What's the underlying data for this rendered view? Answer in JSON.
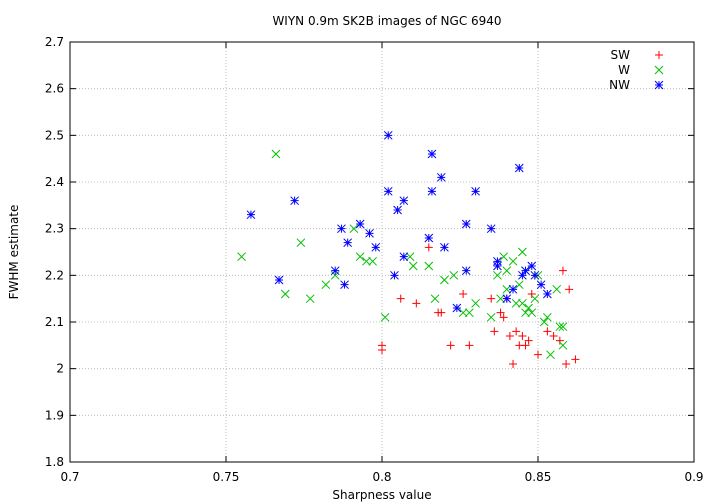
{
  "chart_data": {
    "type": "scatter",
    "title": "WIYN 0.9m SK2B images of NGC 6940",
    "xlabel": "Sharpness value",
    "ylabel": "FWHM estimate",
    "xlim": [
      0.7,
      0.9
    ],
    "ylim": [
      1.8,
      2.7
    ],
    "xticks": [
      "0.7",
      "0.75",
      "0.8",
      "0.85",
      "0.9"
    ],
    "yticks": [
      "1.8",
      "1.9",
      "2",
      "2.1",
      "2.2",
      "2.3",
      "2.4",
      "2.5",
      "2.6",
      "2.7"
    ],
    "grid": true,
    "legend_position": "top-right",
    "series": [
      {
        "name": "SW",
        "marker": "plus",
        "color": "#ff0000",
        "points": [
          [
            0.8,
            2.05
          ],
          [
            0.8,
            2.04
          ],
          [
            0.806,
            2.15
          ],
          [
            0.811,
            2.14
          ],
          [
            0.815,
            2.26
          ],
          [
            0.818,
            2.12
          ],
          [
            0.819,
            2.12
          ],
          [
            0.822,
            2.05
          ],
          [
            0.826,
            2.16
          ],
          [
            0.828,
            2.05
          ],
          [
            0.836,
            2.08
          ],
          [
            0.838,
            2.12
          ],
          [
            0.839,
            2.11
          ],
          [
            0.841,
            2.07
          ],
          [
            0.842,
            2.01
          ],
          [
            0.843,
            2.08
          ],
          [
            0.844,
            2.05
          ],
          [
            0.845,
            2.07
          ],
          [
            0.846,
            2.05
          ],
          [
            0.847,
            2.06
          ],
          [
            0.85,
            2.03
          ],
          [
            0.853,
            2.08
          ],
          [
            0.855,
            2.07
          ],
          [
            0.857,
            2.06
          ],
          [
            0.858,
            2.21
          ],
          [
            0.859,
            2.01
          ],
          [
            0.86,
            2.17
          ],
          [
            0.862,
            2.02
          ],
          [
            0.848,
            2.16
          ],
          [
            0.84,
            2.15
          ],
          [
            0.835,
            2.15
          ]
        ]
      },
      {
        "name": "W",
        "marker": "cross",
        "color": "#00c000",
        "points": [
          [
            0.755,
            2.24
          ],
          [
            0.766,
            2.46
          ],
          [
            0.769,
            2.16
          ],
          [
            0.774,
            2.27
          ],
          [
            0.777,
            2.15
          ],
          [
            0.782,
            2.18
          ],
          [
            0.785,
            2.2
          ],
          [
            0.791,
            2.3
          ],
          [
            0.793,
            2.24
          ],
          [
            0.795,
            2.23
          ],
          [
            0.797,
            2.23
          ],
          [
            0.801,
            2.11
          ],
          [
            0.809,
            2.24
          ],
          [
            0.81,
            2.22
          ],
          [
            0.815,
            2.22
          ],
          [
            0.817,
            2.15
          ],
          [
            0.82,
            2.19
          ],
          [
            0.823,
            2.2
          ],
          [
            0.826,
            2.12
          ],
          [
            0.828,
            2.12
          ],
          [
            0.83,
            2.14
          ],
          [
            0.835,
            2.11
          ],
          [
            0.837,
            2.2
          ],
          [
            0.838,
            2.15
          ],
          [
            0.839,
            2.24
          ],
          [
            0.84,
            2.17
          ],
          [
            0.842,
            2.23
          ],
          [
            0.843,
            2.14
          ],
          [
            0.844,
            2.18
          ],
          [
            0.845,
            2.25
          ],
          [
            0.845,
            2.14
          ],
          [
            0.846,
            2.12
          ],
          [
            0.847,
            2.13
          ],
          [
            0.848,
            2.12
          ],
          [
            0.849,
            2.15
          ],
          [
            0.85,
            2.2
          ],
          [
            0.852,
            2.1
          ],
          [
            0.853,
            2.11
          ],
          [
            0.854,
            2.03
          ],
          [
            0.856,
            2.17
          ],
          [
            0.857,
            2.09
          ],
          [
            0.858,
            2.09
          ],
          [
            0.858,
            2.05
          ],
          [
            0.846,
            2.21
          ],
          [
            0.84,
            2.21
          ]
        ]
      },
      {
        "name": "NW",
        "marker": "star",
        "color": "#0000ff",
        "points": [
          [
            0.758,
            2.33
          ],
          [
            0.767,
            2.19
          ],
          [
            0.772,
            2.36
          ],
          [
            0.785,
            2.21
          ],
          [
            0.787,
            2.3
          ],
          [
            0.788,
            2.18
          ],
          [
            0.789,
            2.27
          ],
          [
            0.793,
            2.31
          ],
          [
            0.796,
            2.29
          ],
          [
            0.798,
            2.26
          ],
          [
            0.802,
            2.5
          ],
          [
            0.802,
            2.38
          ],
          [
            0.804,
            2.2
          ],
          [
            0.805,
            2.34
          ],
          [
            0.807,
            2.36
          ],
          [
            0.807,
            2.24
          ],
          [
            0.815,
            2.28
          ],
          [
            0.816,
            2.46
          ],
          [
            0.816,
            2.38
          ],
          [
            0.819,
            2.41
          ],
          [
            0.82,
            2.26
          ],
          [
            0.824,
            2.13
          ],
          [
            0.827,
            2.31
          ],
          [
            0.827,
            2.21
          ],
          [
            0.83,
            2.38
          ],
          [
            0.835,
            2.3
          ],
          [
            0.837,
            2.22
          ],
          [
            0.837,
            2.23
          ],
          [
            0.84,
            2.15
          ],
          [
            0.842,
            2.17
          ],
          [
            0.844,
            2.43
          ],
          [
            0.845,
            2.2
          ],
          [
            0.846,
            2.21
          ],
          [
            0.848,
            2.22
          ],
          [
            0.849,
            2.2
          ],
          [
            0.851,
            2.18
          ],
          [
            0.853,
            2.16
          ]
        ]
      }
    ]
  }
}
